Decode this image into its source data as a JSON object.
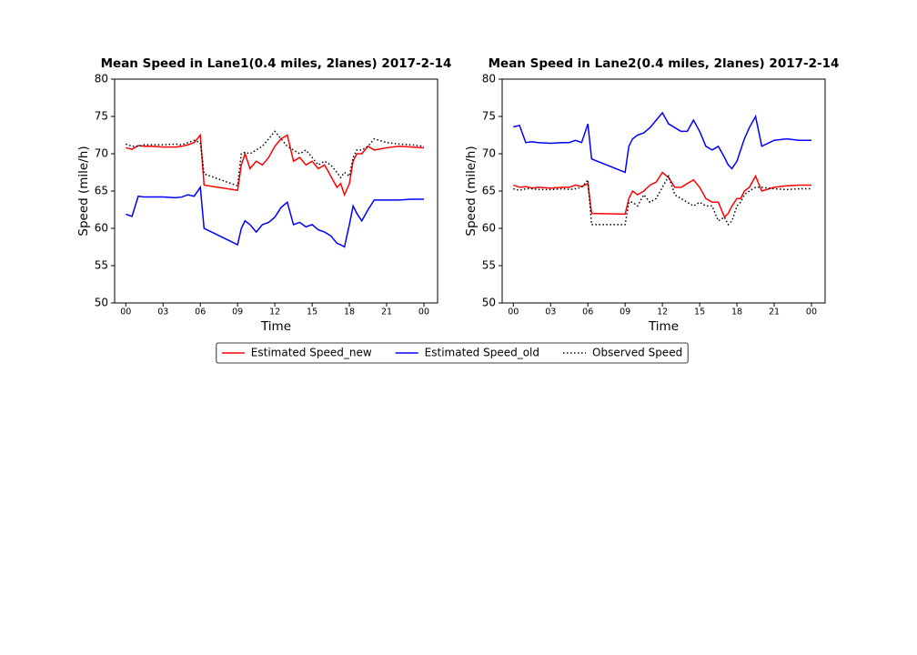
{
  "chart_data": [
    {
      "type": "line",
      "title": "Mean Speed in Lane1(0.4 miles, 2lanes) 2017-2-14",
      "xlabel": "Time",
      "ylabel": "Speed (mile/h)",
      "x": [
        0,
        0.5,
        1,
        1.5,
        2,
        3,
        4,
        4.5,
        5,
        5.5,
        6,
        6.3,
        9,
        9.3,
        9.6,
        10,
        10.5,
        11,
        11.5,
        12,
        12.5,
        13,
        13.5,
        14,
        14.5,
        15,
        15.5,
        16,
        16.5,
        17,
        17.3,
        17.6,
        18,
        18.3,
        18.6,
        19,
        19.5,
        20,
        21,
        22,
        23,
        24
      ],
      "xlim": [
        -0.9,
        25.1
      ],
      "ylim": [
        50,
        80
      ],
      "xticks": [
        {
          "value": 0,
          "label": "00"
        },
        {
          "value": 3,
          "label": "03"
        },
        {
          "value": 6,
          "label": "06"
        },
        {
          "value": 9,
          "label": "09"
        },
        12,
        15,
        18,
        21,
        {
          "value": 24,
          "label": "00"
        }
      ],
      "yticks": [
        50,
        55,
        60,
        65,
        70,
        75,
        80
      ],
      "series": [
        {
          "name": "Estimated Speed_new",
          "color": "#ff0000",
          "style": "solid",
          "values": [
            70.8,
            70.6,
            71.1,
            71,
            71,
            70.9,
            70.9,
            71,
            71.2,
            71.5,
            72.5,
            65.8,
            65.1,
            68.5,
            70,
            68,
            69,
            68.5,
            69.5,
            71,
            72,
            72.5,
            69,
            69.5,
            68.5,
            69,
            68,
            68.5,
            67,
            65.5,
            66,
            64.5,
            66,
            69,
            70,
            70,
            71,
            70.5,
            70.8,
            71,
            70.9,
            70.8
          ]
        },
        {
          "name": "Estimated Speed_old",
          "color": "#0000ff",
          "style": "solid",
          "values": [
            61.9,
            61.6,
            64.3,
            64.2,
            64.2,
            64.2,
            64.1,
            64.2,
            64.5,
            64.3,
            65.5,
            60,
            57.8,
            60,
            61,
            60.5,
            59.5,
            60.5,
            60.8,
            61.5,
            62.8,
            63.5,
            60.5,
            60.8,
            60.2,
            60.5,
            59.8,
            59.5,
            59,
            58,
            57.8,
            57.5,
            60.5,
            63,
            62,
            61,
            62.5,
            63.8,
            63.8,
            63.8,
            63.9,
            63.9
          ]
        },
        {
          "name": "Observed Speed",
          "color": "#000000",
          "style": "dotted",
          "values": [
            71.3,
            71,
            71,
            71.2,
            71.2,
            71.2,
            71.3,
            71.2,
            71.5,
            71.8,
            71.5,
            67.3,
            65.7,
            70,
            70.2,
            70,
            70.5,
            71,
            72,
            73,
            72,
            71,
            70.5,
            70,
            70.5,
            69.5,
            68.5,
            69,
            68.5,
            67.5,
            66.8,
            67.5,
            67,
            69.5,
            70.5,
            70.5,
            71,
            72,
            71.5,
            71.3,
            71.2,
            71
          ]
        }
      ]
    },
    {
      "type": "line",
      "title": "Mean Speed in Lane2(0.4 miles, 2lanes) 2017-2-14",
      "xlabel": "Time",
      "ylabel": "Speed (mile/h)",
      "x": [
        0,
        0.5,
        1,
        1.5,
        2,
        3,
        4,
        4.5,
        5,
        5.5,
        6,
        6.3,
        9,
        9.3,
        9.6,
        10,
        10.5,
        11,
        11.5,
        12,
        12.5,
        13,
        13.5,
        14,
        14.5,
        15,
        15.5,
        16,
        16.5,
        17,
        17.3,
        17.6,
        18,
        18.3,
        18.6,
        19,
        19.5,
        20,
        21,
        22,
        23,
        24
      ],
      "xlim": [
        -0.9,
        25.1
      ],
      "ylim": [
        50,
        80
      ],
      "xticks": [
        {
          "value": 0,
          "label": "00"
        },
        {
          "value": 3,
          "label": "03"
        },
        {
          "value": 6,
          "label": "06"
        },
        {
          "value": 9,
          "label": "09"
        },
        12,
        15,
        18,
        21,
        {
          "value": 24,
          "label": "00"
        }
      ],
      "yticks": [
        50,
        55,
        60,
        65,
        70,
        75,
        80
      ],
      "series": [
        {
          "color": "#ff0000",
          "style": "solid",
          "values": [
            65.8,
            65.5,
            65.6,
            65.4,
            65.5,
            65.4,
            65.5,
            65.5,
            65.8,
            65.6,
            66,
            62,
            61.9,
            64,
            65,
            64.5,
            65,
            65.8,
            66.2,
            67.5,
            66.8,
            65.5,
            65.5,
            66,
            66.5,
            65.5,
            64,
            63.5,
            63.5,
            61.5,
            62,
            63,
            64,
            64,
            65,
            65.5,
            67,
            65,
            65.5,
            65.7,
            65.8,
            65.8
          ]
        },
        {
          "color": "#0000ff",
          "style": "solid",
          "values": [
            73.6,
            73.8,
            71.5,
            71.6,
            71.5,
            71.4,
            71.5,
            71.5,
            71.8,
            71.5,
            74,
            69.3,
            67.5,
            71,
            72,
            72.5,
            72.8,
            73.5,
            74.5,
            75.5,
            74,
            73.5,
            73,
            73,
            74.5,
            73,
            71,
            70.5,
            71,
            69.5,
            68.5,
            68,
            69,
            70.5,
            72,
            73.5,
            75,
            71,
            71.8,
            72,
            71.8,
            71.8
          ]
        },
        {
          "color": "#000000",
          "style": "dotted",
          "values": [
            65.3,
            65.1,
            65.3,
            65.3,
            65.2,
            65.2,
            65.3,
            65.2,
            65.3,
            65.5,
            66.5,
            60.5,
            60.5,
            63.5,
            63.5,
            63,
            64.5,
            63.5,
            64,
            65.5,
            67,
            64.5,
            64,
            63.5,
            63,
            63.5,
            63,
            63,
            61,
            61.5,
            60.5,
            61,
            63,
            63.5,
            64.5,
            65,
            65.5,
            65.5,
            65.3,
            65.2,
            65.3,
            65.3
          ]
        }
      ]
    }
  ]
}
